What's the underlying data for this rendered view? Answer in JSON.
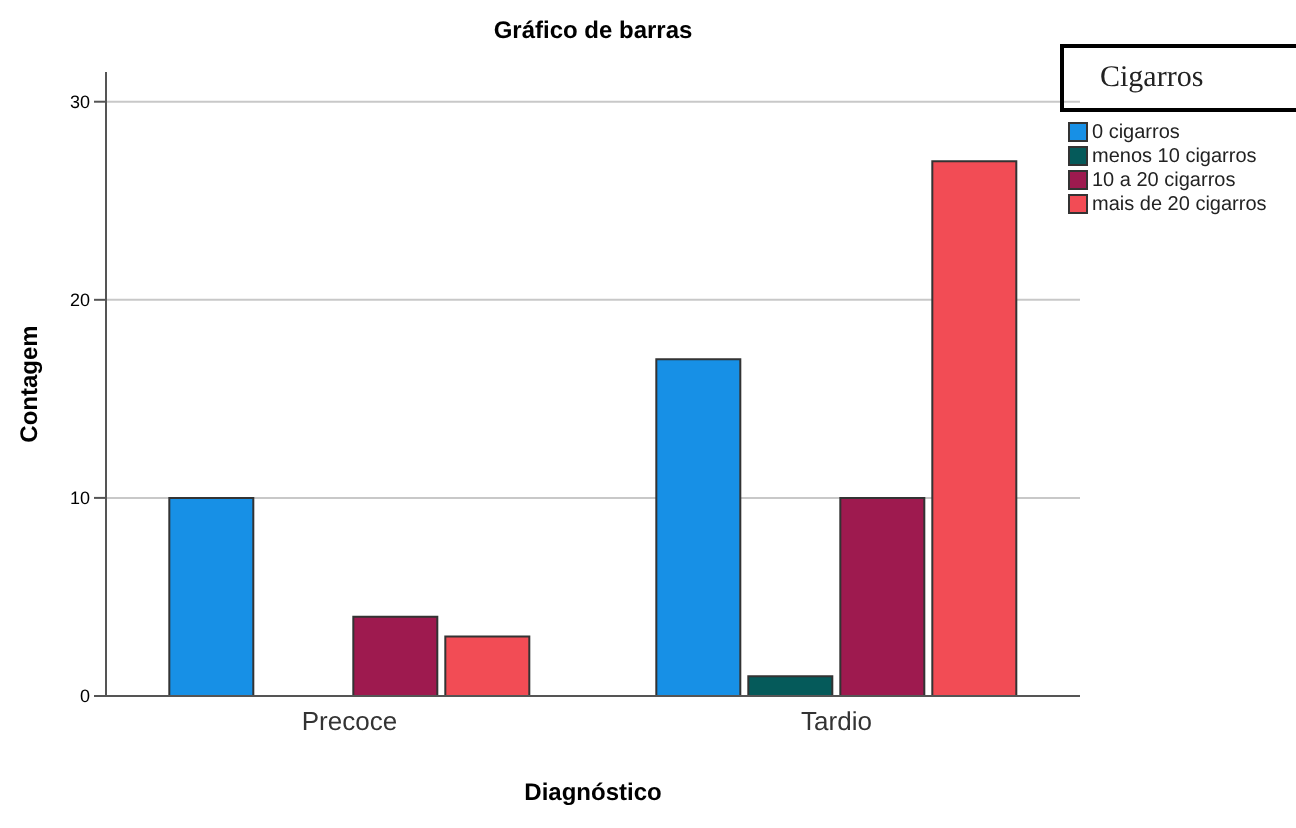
{
  "chart_data": {
    "type": "bar",
    "title": "Gráfico de barras",
    "xlabel": "Diagnóstico",
    "ylabel": "Contagem",
    "legend_title": "Cigarros",
    "categories": [
      "Precoce",
      "Tardio"
    ],
    "series": [
      {
        "name": "0 cigarros",
        "color": "#1790e6",
        "values": [
          10,
          17
        ]
      },
      {
        "name": "menos 10 cigarros",
        "color": "#055a5a",
        "values": [
          0,
          1
        ]
      },
      {
        "name": "10 a 20 cigarros",
        "color": "#9e1a4f",
        "values": [
          4,
          10
        ]
      },
      {
        "name": "mais de 20 cigarros",
        "color": "#f24c55",
        "values": [
          3,
          27
        ]
      }
    ],
    "ylim": [
      0,
      31.5
    ],
    "yticks": [
      0,
      10,
      20,
      30
    ],
    "grid": "y",
    "legend": "top right"
  }
}
